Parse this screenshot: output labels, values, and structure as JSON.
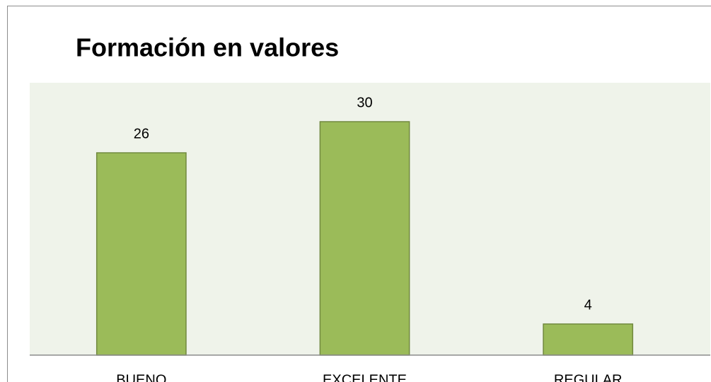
{
  "chart_data": {
    "type": "bar",
    "title": "Formación en valores",
    "categories": [
      "BUENO",
      "EXCELENTE",
      "REGULAR"
    ],
    "values": [
      26,
      30,
      4
    ],
    "color": "#9bbb59",
    "ylim": [
      0,
      35
    ]
  }
}
